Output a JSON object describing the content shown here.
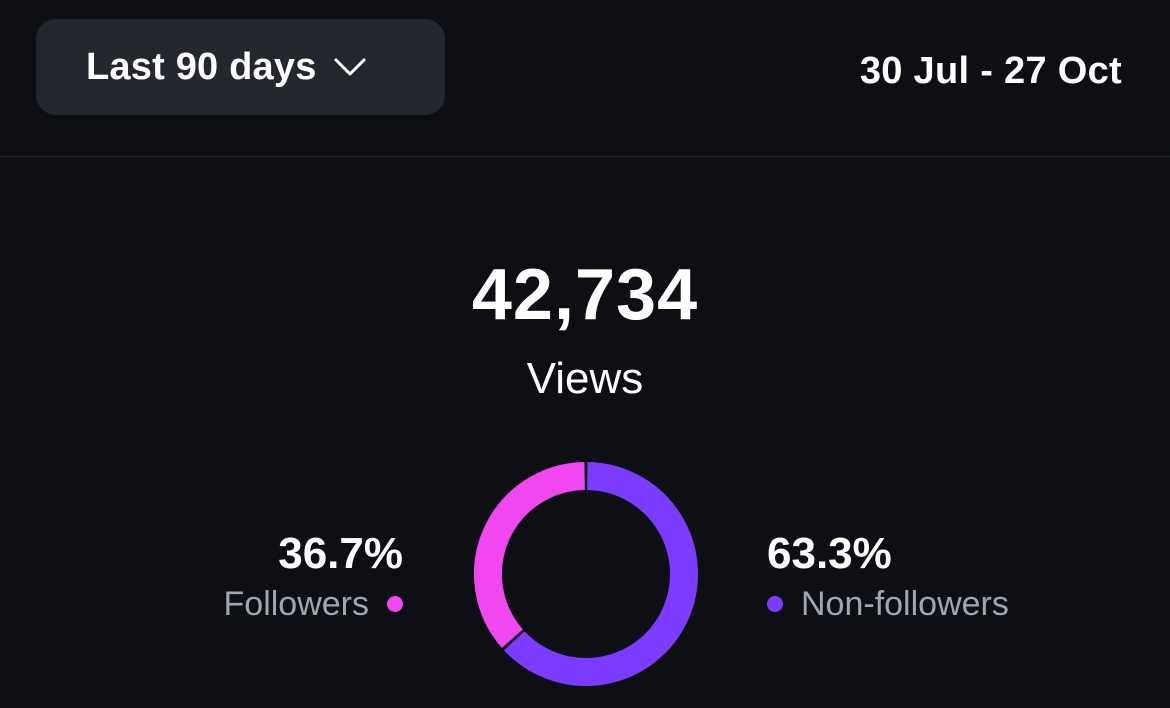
{
  "header": {
    "range_label": "Last 90 days",
    "range_icon": "chevron-down-icon",
    "date_range": "30 Jul - 27 Oct"
  },
  "summary": {
    "total": "42,734",
    "label": "Views"
  },
  "legend": {
    "followers": {
      "value": "36.7%",
      "label": "Followers"
    },
    "non_followers": {
      "value": "63.3%",
      "label": "Non-followers"
    }
  },
  "chart_data": {
    "type": "pie",
    "categories": [
      "Followers",
      "Non-followers"
    ],
    "values": [
      36.7,
      63.3
    ],
    "colors": [
      "#f147f0",
      "#7c3cff"
    ]
  }
}
